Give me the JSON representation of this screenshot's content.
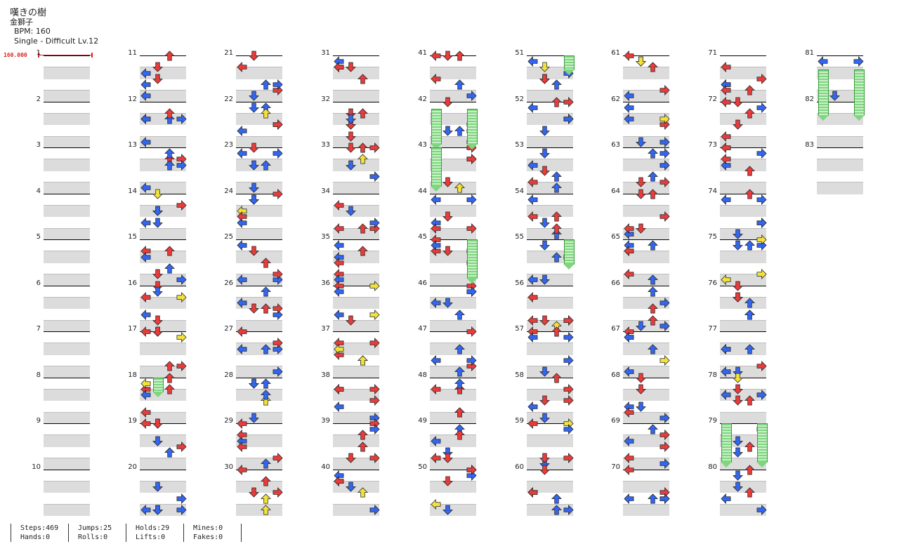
{
  "song": {
    "title": "嘆きの樹",
    "artist": "金獅子",
    "bpm_label": "BPM: 160",
    "difficulty_label": "Single - Difficult Lv.12"
  },
  "bpm_marker": "160.000",
  "stats": {
    "steps": "Steps:469",
    "hands": "Hands:0",
    "jumps": "Jumps:25",
    "rolls": "Rolls:0",
    "holds": "Holds:29",
    "lifts": "Lifts:0",
    "mines": "Mines:0",
    "fakes": "Fakes:0"
  },
  "colors": {
    "quarter": "#e83b3b",
    "eighth": "#3366ee",
    "sixteenth": "#f2e23a",
    "hold": "#7fd67f",
    "stripe": "#dcdcdc"
  },
  "columns": [
    {
      "measures": [
        "1",
        "2",
        "3",
        "4",
        "5",
        "6",
        "7",
        "8",
        "9",
        "10"
      ]
    },
    {
      "measures": [
        "11",
        "12",
        "13",
        "14",
        "15",
        "16",
        "17",
        "18",
        "19",
        "20"
      ]
    },
    {
      "measures": [
        "21",
        "22",
        "23",
        "24",
        "25",
        "26",
        "27",
        "28",
        "29",
        "30"
      ]
    },
    {
      "measures": [
        "31",
        "32",
        "33",
        "34",
        "35",
        "36",
        "37",
        "38",
        "39",
        "40"
      ]
    },
    {
      "measures": [
        "41",
        "42",
        "43",
        "44",
        "45",
        "46",
        "47",
        "48",
        "49",
        "50"
      ]
    },
    {
      "measures": [
        "51",
        "52",
        "53",
        "54",
        "55",
        "56",
        "57",
        "58",
        "59",
        "60"
      ]
    },
    {
      "measures": [
        "61",
        "62",
        "63",
        "64",
        "65",
        "66",
        "67",
        "68",
        "69",
        "70"
      ]
    },
    {
      "measures": [
        "71",
        "72",
        "73",
        "74",
        "75",
        "76",
        "77",
        "78",
        "79",
        "80"
      ]
    },
    {
      "measures": [
        "81",
        "82",
        "83"
      ]
    }
  ]
}
